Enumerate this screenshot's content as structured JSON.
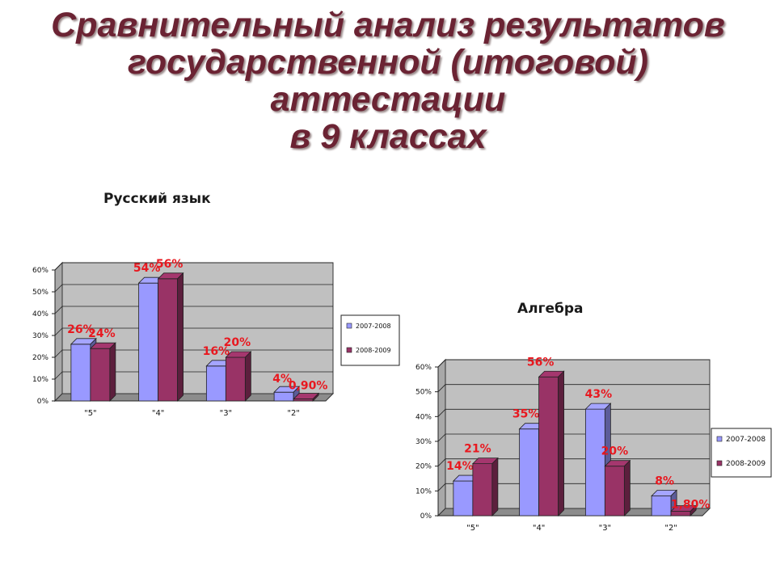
{
  "page": {
    "title_lines": [
      "Сравнительный анализ результатов",
      "государственной (итоговой)",
      "аттестации",
      "в 9 классах"
    ]
  },
  "colors": {
    "title": "#6b2333",
    "series_2007": "#9999ff",
    "series_2008": "#993366",
    "data_label": "#e8181f",
    "wall": "#c0c0c0"
  },
  "chart_data": [
    {
      "type": "bar",
      "title": "Русский язык",
      "categories": [
        "\"5\"",
        "\"4\"",
        "\"3\"",
        "\"2\""
      ],
      "series": [
        {
          "name": "2007-2008",
          "values": [
            26,
            54,
            16,
            4
          ],
          "labels": [
            "26%",
            "54%",
            "16%",
            "4%"
          ]
        },
        {
          "name": "2008-2009",
          "values": [
            24,
            56,
            20,
            0.9
          ],
          "labels": [
            "24%",
            "56%",
            "20%",
            "0,90%"
          ]
        }
      ],
      "yticks": [
        "0%",
        "10%",
        "20%",
        "30%",
        "40%",
        "50%",
        "60%"
      ],
      "ylim": [
        0,
        60
      ],
      "grid": true,
      "legend": "right"
    },
    {
      "type": "bar",
      "title": "Алгебра",
      "categories": [
        "\"5\"",
        "\"4\"",
        "\"3\"",
        "\"2\""
      ],
      "series": [
        {
          "name": "2007-2008",
          "values": [
            14,
            35,
            43,
            8
          ],
          "labels": [
            "14%",
            "35%",
            "43%",
            "8%"
          ]
        },
        {
          "name": "2008-2009",
          "values": [
            21,
            56,
            20,
            1.8
          ],
          "labels": [
            "21%",
            "56%",
            "20%",
            "1,80%"
          ]
        }
      ],
      "yticks": [
        "0%",
        "10%",
        "20%",
        "30%",
        "40%",
        "50%",
        "60%"
      ],
      "ylim": [
        0,
        60
      ],
      "grid": true,
      "legend": "right"
    }
  ]
}
